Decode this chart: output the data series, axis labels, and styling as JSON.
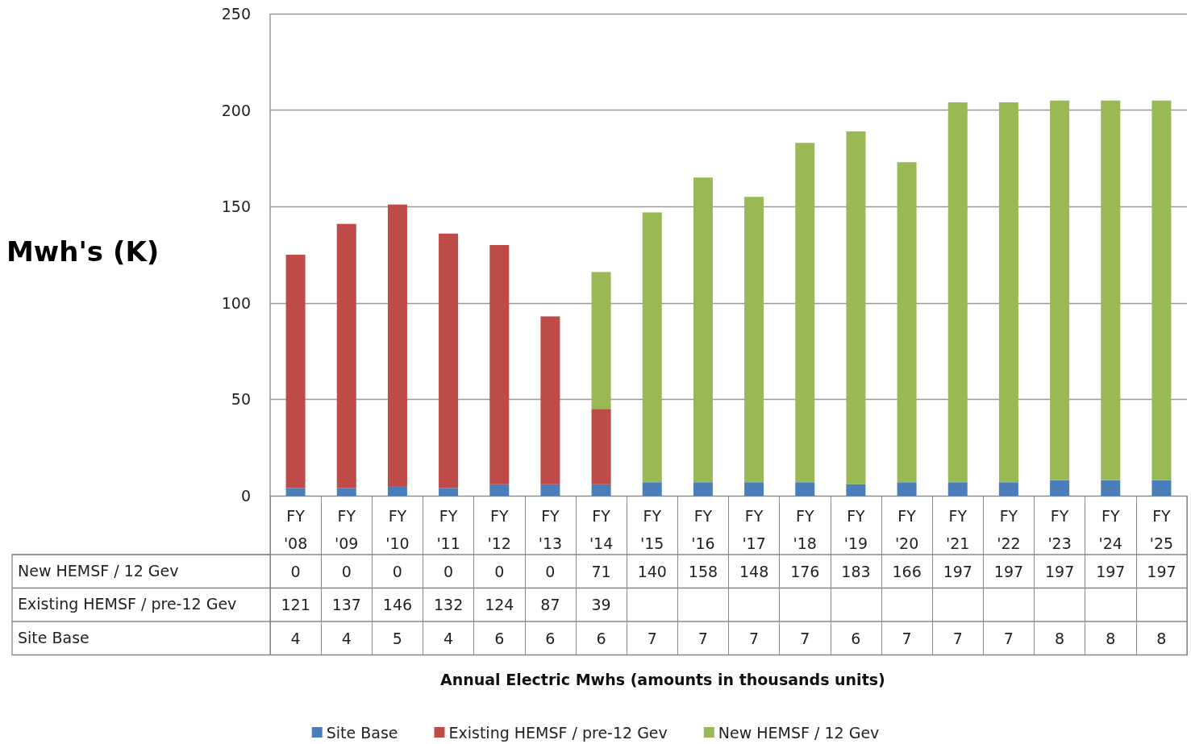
{
  "chart_data": {
    "type": "bar",
    "stacked": true,
    "ylabel": "Mwh's (K)",
    "annotations": [
      "Annual Electric Mwhs (amounts in thousands units)"
    ],
    "categories": [
      "FY '08",
      "FY '09",
      "FY '10",
      "FY '11",
      "FY '12",
      "FY '13",
      "FY '14",
      "FY '15",
      "FY '16",
      "FY '17",
      "FY '18",
      "FY '19",
      "FY '20",
      "FY '21",
      "FY '22",
      "FY '23",
      "FY '24",
      "FY '25"
    ],
    "series": [
      {
        "name": "Site Base",
        "color": "#4a7ebb",
        "values": [
          4,
          4,
          5,
          4,
          6,
          6,
          6,
          7,
          7,
          7,
          7,
          6,
          7,
          7,
          7,
          8,
          8,
          8
        ]
      },
      {
        "name": "Existing HEMSF / pre-12 Gev",
        "color": "#be4b48",
        "values": [
          121,
          137,
          146,
          132,
          124,
          87,
          39,
          null,
          null,
          null,
          null,
          null,
          null,
          null,
          null,
          null,
          null,
          null
        ]
      },
      {
        "name": "New HEMSF / 12 Gev",
        "color": "#98b954",
        "values": [
          0,
          0,
          0,
          0,
          0,
          0,
          71,
          140,
          158,
          148,
          176,
          183,
          166,
          197,
          197,
          197,
          197,
          197
        ]
      }
    ],
    "ylim": [
      0,
      250
    ],
    "yticks": [
      0,
      50,
      100,
      150,
      200,
      250
    ],
    "grid": "y",
    "legend": "bottom",
    "data_labels": true
  }
}
